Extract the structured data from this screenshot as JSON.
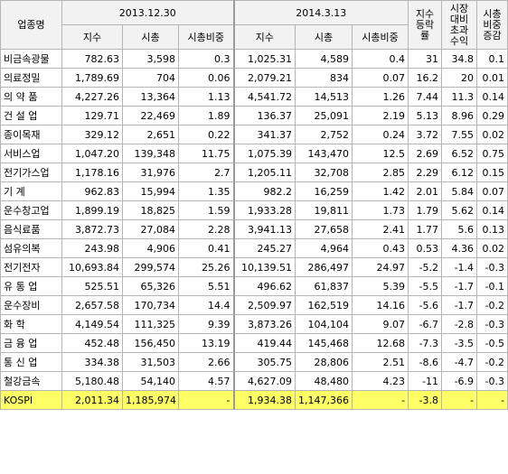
{
  "header": {
    "sector": "업종명",
    "date1": "2013.12.30",
    "date2": "2014.3.13",
    "index_label": "지수",
    "mcap_label": "시총",
    "weight_label": "시총비중",
    "return_label_lines": [
      "지수",
      "등락",
      "률"
    ],
    "excess_label_lines": [
      "시장",
      "대비",
      "초과",
      "수익"
    ],
    "weight_change_label_lines": [
      "시총",
      "비중",
      "증감"
    ]
  },
  "rows": [
    {
      "name": "비금속광물",
      "idx1": "782.63",
      "mcap1": "3,598",
      "w1": "0.3",
      "idx2": "1,025.31",
      "mcap2": "4,589",
      "w2": "0.4",
      "ret": "31",
      "excess": "34.8",
      "wchg": "0.1"
    },
    {
      "name": "의료정밀",
      "idx1": "1,789.69",
      "mcap1": "704",
      "w1": "0.06",
      "idx2": "2,079.21",
      "mcap2": "834",
      "w2": "0.07",
      "ret": "16.2",
      "excess": "20",
      "wchg": "0.01"
    },
    {
      "name": "의 약 품",
      "idx1": "4,227.26",
      "mcap1": "13,364",
      "w1": "1.13",
      "idx2": "4,541.72",
      "mcap2": "14,513",
      "w2": "1.26",
      "ret": "7.44",
      "excess": "11.3",
      "wchg": "0.14"
    },
    {
      "name": "건 설 업",
      "idx1": "129.71",
      "mcap1": "22,469",
      "w1": "1.89",
      "idx2": "136.37",
      "mcap2": "25,091",
      "w2": "2.19",
      "ret": "5.13",
      "excess": "8.96",
      "wchg": "0.29"
    },
    {
      "name": "종이목재",
      "idx1": "329.12",
      "mcap1": "2,651",
      "w1": "0.22",
      "idx2": "341.37",
      "mcap2": "2,752",
      "w2": "0.24",
      "ret": "3.72",
      "excess": "7.55",
      "wchg": "0.02"
    },
    {
      "name": "서비스업",
      "idx1": "1,047.20",
      "mcap1": "139,348",
      "w1": "11.75",
      "idx2": "1,075.39",
      "mcap2": "143,470",
      "w2": "12.5",
      "ret": "2.69",
      "excess": "6.52",
      "wchg": "0.75"
    },
    {
      "name": "전기가스업",
      "idx1": "1,178.16",
      "mcap1": "31,976",
      "w1": "2.7",
      "idx2": "1,205.11",
      "mcap2": "32,708",
      "w2": "2.85",
      "ret": "2.29",
      "excess": "6.12",
      "wchg": "0.15"
    },
    {
      "name": "기 계",
      "idx1": "962.83",
      "mcap1": "15,994",
      "w1": "1.35",
      "idx2": "982.2",
      "mcap2": "16,259",
      "w2": "1.42",
      "ret": "2.01",
      "excess": "5.84",
      "wchg": "0.07"
    },
    {
      "name": "운수창고업",
      "idx1": "1,899.19",
      "mcap1": "18,825",
      "w1": "1.59",
      "idx2": "1,933.28",
      "mcap2": "19,811",
      "w2": "1.73",
      "ret": "1.79",
      "excess": "5.62",
      "wchg": "0.14"
    },
    {
      "name": "음식료품",
      "idx1": "3,872.73",
      "mcap1": "27,084",
      "w1": "2.28",
      "idx2": "3,941.13",
      "mcap2": "27,658",
      "w2": "2.41",
      "ret": "1.77",
      "excess": "5.6",
      "wchg": "0.13"
    },
    {
      "name": "섬유의복",
      "idx1": "243.98",
      "mcap1": "4,906",
      "w1": "0.41",
      "idx2": "245.27",
      "mcap2": "4,964",
      "w2": "0.43",
      "ret": "0.53",
      "excess": "4.36",
      "wchg": "0.02"
    },
    {
      "name": "전기전자",
      "idx1": "10,693.84",
      "mcap1": "299,574",
      "w1": "25.26",
      "idx2": "10,139.51",
      "mcap2": "286,497",
      "w2": "24.97",
      "ret": "-5.2",
      "excess": "-1.4",
      "wchg": "-0.3"
    },
    {
      "name": "유 통 업",
      "idx1": "525.51",
      "mcap1": "65,326",
      "w1": "5.51",
      "idx2": "496.62",
      "mcap2": "61,837",
      "w2": "5.39",
      "ret": "-5.5",
      "excess": "-1.7",
      "wchg": "-0.1"
    },
    {
      "name": "운수장비",
      "idx1": "2,657.58",
      "mcap1": "170,734",
      "w1": "14.4",
      "idx2": "2,509.97",
      "mcap2": "162,519",
      "w2": "14.16",
      "ret": "-5.6",
      "excess": "-1.7",
      "wchg": "-0.2"
    },
    {
      "name": "화 학",
      "idx1": "4,149.54",
      "mcap1": "111,325",
      "w1": "9.39",
      "idx2": "3,873.26",
      "mcap2": "104,104",
      "w2": "9.07",
      "ret": "-6.7",
      "excess": "-2.8",
      "wchg": "-0.3"
    },
    {
      "name": "금 융 업",
      "idx1": "452.48",
      "mcap1": "156,450",
      "w1": "13.19",
      "idx2": "419.44",
      "mcap2": "145,468",
      "w2": "12.68",
      "ret": "-7.3",
      "excess": "-3.5",
      "wchg": "-0.5"
    },
    {
      "name": "통 신 업",
      "idx1": "334.38",
      "mcap1": "31,503",
      "w1": "2.66",
      "idx2": "305.75",
      "mcap2": "28,806",
      "w2": "2.51",
      "ret": "-8.6",
      "excess": "-4.7",
      "wchg": "-0.2"
    },
    {
      "name": "철강금속",
      "idx1": "5,180.48",
      "mcap1": "54,140",
      "w1": "4.57",
      "idx2": "4,627.09",
      "mcap2": "48,480",
      "w2": "4.23",
      "ret": "-11",
      "excess": "-6.9",
      "wchg": "-0.3"
    }
  ],
  "total": {
    "name": "KOSPI",
    "idx1": "2,011.34",
    "mcap1": "1,185,974",
    "w1": "-",
    "idx2": "1,934.38",
    "mcap2": "1,147,366",
    "w2": "-",
    "ret": "-3.8",
    "excess": "-",
    "wchg": "-"
  },
  "colors": {
    "header_bg": "#f2f2f2",
    "total_row_bg": "#ffff66",
    "grid_line": "#b5b5b5"
  }
}
